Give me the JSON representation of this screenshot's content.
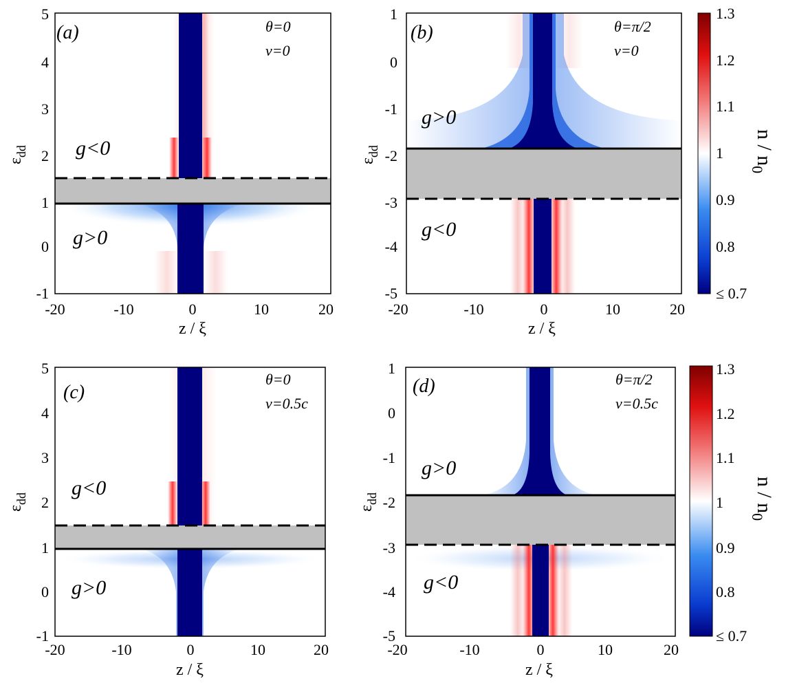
{
  "chart_data": [
    {
      "type": "heatmap",
      "panel_label": "(a)",
      "params": [
        "θ=0",
        "v=0"
      ],
      "xlabel": "z / ξ",
      "ylabel": "ε",
      "ylabel_sub": "dd",
      "xlim": [
        -20,
        20
      ],
      "ylim": [
        -1,
        5
      ],
      "xticks": [
        "-20",
        "-10",
        "0",
        "10",
        "20"
      ],
      "yticks": [
        "-1",
        "0",
        "1",
        "2",
        "3",
        "4",
        "5"
      ],
      "regions": [
        {
          "label": "g<0",
          "x": -15,
          "y": 2.0
        },
        {
          "label": "g>0",
          "x": -15,
          "y": 0.2
        }
      ],
      "solid_boundary": 1.0,
      "dashed_boundary": 1.5,
      "gap": [
        1.0,
        1.5
      ]
    },
    {
      "type": "heatmap",
      "panel_label": "(b)",
      "params": [
        "θ=π/2",
        "v=0"
      ],
      "xlabel": "z / ξ",
      "ylabel": "ε",
      "ylabel_sub": "dd",
      "xlim": [
        -20,
        20
      ],
      "ylim": [
        -5,
        1
      ],
      "xticks": [
        "-20",
        "-10",
        "0",
        "10",
        "20"
      ],
      "yticks": [
        "-5",
        "-4",
        "-3",
        "-2",
        "-1",
        "0",
        "1"
      ],
      "regions": [
        {
          "label": "g>0",
          "x": -15,
          "y": -1.2
        },
        {
          "label": "g<0",
          "x": -15,
          "y": -3.6
        }
      ],
      "solid_boundary": -1.9,
      "dashed_boundary": -3.0,
      "gap": [
        -3.0,
        -1.9
      ]
    },
    {
      "type": "heatmap",
      "panel_label": "(c)",
      "params": [
        "θ=0",
        "v=0.5c"
      ],
      "xlabel": "z / ξ",
      "ylabel": "ε",
      "ylabel_sub": "dd",
      "xlim": [
        -20,
        20
      ],
      "ylim": [
        -1,
        5
      ],
      "xticks": [
        "-20",
        "-10",
        "0",
        "10",
        "20"
      ],
      "yticks": [
        "-1",
        "0",
        "1",
        "2",
        "3",
        "4",
        "5"
      ],
      "regions": [
        {
          "label": "g<0",
          "x": -15,
          "y": 2.2
        },
        {
          "label": "g>0",
          "x": -15,
          "y": 0.0
        }
      ],
      "solid_boundary": 1.0,
      "dashed_boundary": 1.5,
      "gap": [
        1.0,
        1.5
      ]
    },
    {
      "type": "heatmap",
      "panel_label": "(d)",
      "params": [
        "θ=π/2",
        "v=0.5c"
      ],
      "xlabel": "z / ξ",
      "ylabel": "ε",
      "ylabel_sub": "dd",
      "xlim": [
        -20,
        20
      ],
      "ylim": [
        -5,
        1
      ],
      "xticks": [
        "-20",
        "-10",
        "0",
        "10",
        "20"
      ],
      "yticks": [
        "-5",
        "-4",
        "-3",
        "-2",
        "-1",
        "0",
        "1"
      ],
      "regions": [
        {
          "label": "g>0",
          "x": -15,
          "y": -1.2
        },
        {
          "label": "g<0",
          "x": -15,
          "y": -3.7
        }
      ],
      "solid_boundary": -1.85,
      "dashed_boundary": -2.95,
      "gap": [
        -2.95,
        -1.85
      ]
    }
  ],
  "colorbar": {
    "label": "n / n",
    "label_sub": "0",
    "range": [
      0.7,
      1.3
    ],
    "ticks": [
      "≤ 0.7",
      "0.8",
      "0.9",
      "1",
      "1.1",
      "1.2",
      "1.3"
    ],
    "colors": {
      "low": "#00007f",
      "mid_low": "#0a64f0",
      "center": "#ffffff",
      "mid_high": "#f01414",
      "high": "#7f0000"
    }
  },
  "gap_color": "#c0c0c0"
}
